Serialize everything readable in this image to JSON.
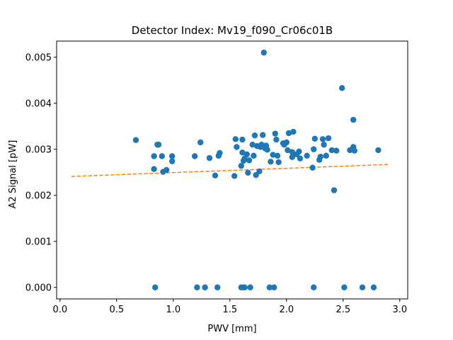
{
  "chart_data": {
    "type": "scatter",
    "title": "Detector Index: Mv19_f090_Cr06c01B",
    "xlabel": "PWV [mm]",
    "ylabel": "A2 Signal [pW]",
    "xlim": [
      -0.03,
      3.07
    ],
    "ylim": [
      -0.00025,
      0.00535
    ],
    "xticks": [
      0.0,
      0.5,
      1.0,
      1.5,
      2.0,
      2.5,
      3.0
    ],
    "xtick_labels": [
      "0.0",
      "0.5",
      "1.0",
      "1.5",
      "2.0",
      "2.5",
      "3.0"
    ],
    "yticks": [
      0.0,
      0.001,
      0.002,
      0.003,
      0.004,
      0.005
    ],
    "ytick_labels": [
      "0.000",
      "0.001",
      "0.002",
      "0.003",
      "0.004",
      "0.005"
    ],
    "grid": false,
    "colors": {
      "points": "#1f77b4",
      "fit": "#ff7f0e"
    },
    "series": [
      {
        "name": "data",
        "kind": "scatter",
        "points": [
          [
            0.67,
            0.0032
          ],
          [
            0.83,
            0.00285
          ],
          [
            0.83,
            0.00257
          ],
          [
            0.86,
            0.0031
          ],
          [
            0.87,
            0.0031
          ],
          [
            0.9,
            0.00285
          ],
          [
            0.91,
            0.00251
          ],
          [
            0.94,
            0.00255
          ],
          [
            0.99,
            0.00285
          ],
          [
            0.99,
            0.00274
          ],
          [
            1.19,
            0.00285
          ],
          [
            1.24,
            0.00315
          ],
          [
            1.32,
            0.00281
          ],
          [
            1.37,
            0.00243
          ],
          [
            1.4,
            0.00286
          ],
          [
            1.41,
            0.00292
          ],
          [
            1.54,
            0.00242
          ],
          [
            1.55,
            0.00322
          ],
          [
            1.56,
            0.00305
          ],
          [
            1.6,
            0.00264
          ],
          [
            1.61,
            0.00321
          ],
          [
            1.61,
            0.00293
          ],
          [
            1.62,
            0.00275
          ],
          [
            1.63,
            0.0028
          ],
          [
            1.65,
            0.00289
          ],
          [
            1.66,
            0.00249
          ],
          [
            1.67,
            0.00276
          ],
          [
            1.7,
            0.0031
          ],
          [
            1.71,
            0.00286
          ],
          [
            1.72,
            0.0033
          ],
          [
            1.73,
            0.00244
          ],
          [
            1.74,
            0.00307
          ],
          [
            1.76,
            0.00252
          ],
          [
            1.77,
            0.00305
          ],
          [
            1.78,
            0.0031
          ],
          [
            1.79,
            0.00331
          ],
          [
            1.8,
            0.0051
          ],
          [
            1.81,
            0.00302
          ],
          [
            1.82,
            0.00308
          ],
          [
            1.83,
            0.00299
          ],
          [
            1.86,
            0.00273
          ],
          [
            1.88,
            0.00288
          ],
          [
            1.9,
            0.00334
          ],
          [
            1.91,
            0.00321
          ],
          [
            1.92,
            0.00286
          ],
          [
            1.93,
            0.00272
          ],
          [
            1.97,
            0.00313
          ],
          [
            1.98,
            0.0031
          ],
          [
            2.0,
            0.00315
          ],
          [
            2.01,
            0.00298
          ],
          [
            2.02,
            0.00335
          ],
          [
            2.05,
            0.00294
          ],
          [
            2.05,
            0.00283
          ],
          [
            2.06,
            0.00338
          ],
          [
            2.09,
            0.00289
          ],
          [
            2.11,
            0.00295
          ],
          [
            2.12,
            0.0028
          ],
          [
            2.18,
            0.00286
          ],
          [
            2.23,
            0.0026
          ],
          [
            2.24,
            0.003
          ],
          [
            2.25,
            0.00323
          ],
          [
            2.29,
            0.00277
          ],
          [
            2.3,
            0.00284
          ],
          [
            2.32,
            0.00322
          ],
          [
            2.33,
            0.0031
          ],
          [
            2.35,
            0.00286
          ],
          [
            2.37,
            0.00324
          ],
          [
            2.4,
            0.00298
          ],
          [
            2.42,
            0.00211
          ],
          [
            2.44,
            0.00297
          ],
          [
            2.49,
            0.00433
          ],
          [
            2.56,
            0.00298
          ],
          [
            2.59,
            0.00364
          ],
          [
            2.59,
            0.00305
          ],
          [
            2.6,
            0.00297
          ],
          [
            2.81,
            0.00298
          ],
          [
            0.84,
            0.0
          ],
          [
            1.21,
            0.0
          ],
          [
            1.28,
            0.0
          ],
          [
            1.39,
            0.0
          ],
          [
            1.6,
            0.0
          ],
          [
            1.62,
            0.0
          ],
          [
            1.63,
            0.0
          ],
          [
            1.68,
            0.0
          ],
          [
            1.85,
            0.0
          ],
          [
            1.89,
            0.0
          ],
          [
            2.24,
            0.0
          ],
          [
            2.51,
            0.0
          ],
          [
            2.67,
            0.0
          ],
          [
            2.77,
            0.0
          ]
        ]
      },
      {
        "name": "linear fit",
        "kind": "dashed-line",
        "x": [
          0.1,
          2.9
        ],
        "y": [
          0.00241,
          0.00267
        ]
      }
    ]
  }
}
